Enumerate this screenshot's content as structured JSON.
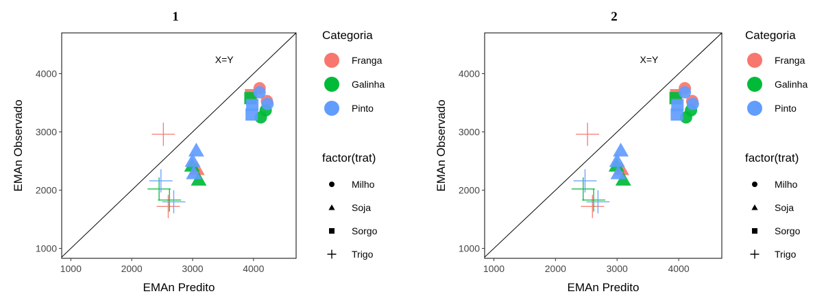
{
  "chart_data": [
    {
      "type": "scatter",
      "title": "1",
      "xlabel": "EMAn Predito",
      "ylabel": "EMAn Observado",
      "xlim": [
        850,
        4700
      ],
      "ylim": [
        830,
        4700
      ],
      "xticks": [
        "1000",
        "2000",
        "3000",
        "4000"
      ],
      "yticks": [
        "1000",
        "2000",
        "3000",
        "4000"
      ],
      "grid": false,
      "reference_line": {
        "label": "X=Y",
        "label_x": 3520,
        "label_y": 4180
      },
      "series": [
        {
          "name": "Franga",
          "points": [
            {
              "x": 4100,
              "y": 3750,
              "trat": "Milho"
            },
            {
              "x": 4220,
              "y": 3530,
              "trat": "Milho"
            },
            {
              "x": 3070,
              "y": 2360,
              "trat": "Soja"
            },
            {
              "x": 3960,
              "y": 3630,
              "trat": "Sorgo"
            },
            {
              "x": 2520,
              "y": 2960,
              "trat": "Trigo"
            },
            {
              "x": 2600,
              "y": 1720,
              "trat": "Trigo"
            }
          ]
        },
        {
          "name": "Galinha",
          "points": [
            {
              "x": 4200,
              "y": 3370,
              "trat": "Milho"
            },
            {
              "x": 4120,
              "y": 3250,
              "trat": "Milho"
            },
            {
              "x": 3100,
              "y": 2180,
              "trat": "Soja"
            },
            {
              "x": 2990,
              "y": 2420,
              "trat": "Soja"
            },
            {
              "x": 3950,
              "y": 3580,
              "trat": "Sorgo"
            },
            {
              "x": 2450,
              "y": 2020,
              "trat": "Trigo"
            },
            {
              "x": 2620,
              "y": 1830,
              "trat": "Trigo"
            }
          ]
        },
        {
          "name": "Pinto",
          "points": [
            {
              "x": 4100,
              "y": 3680,
              "trat": "Milho"
            },
            {
              "x": 4230,
              "y": 3480,
              "trat": "Milho"
            },
            {
              "x": 3060,
              "y": 2680,
              "trat": "Soja"
            },
            {
              "x": 3000,
              "y": 2500,
              "trat": "Soja"
            },
            {
              "x": 3020,
              "y": 2290,
              "trat": "Soja"
            },
            {
              "x": 3980,
              "y": 3460,
              "trat": "Sorgo"
            },
            {
              "x": 3970,
              "y": 3300,
              "trat": "Sorgo"
            },
            {
              "x": 2480,
              "y": 2160,
              "trat": "Trigo"
            },
            {
              "x": 2690,
              "y": 1800,
              "trat": "Trigo"
            }
          ]
        }
      ],
      "legend": {
        "placement": "right",
        "color_title": "Categoria",
        "color_entries": [
          {
            "name": "Franga",
            "color": "#F8766D"
          },
          {
            "name": "Galinha",
            "color": "#00BA38"
          },
          {
            "name": "Pinto",
            "color": "#619CFF"
          }
        ],
        "shape_title": "factor(trat)",
        "shape_entries": [
          {
            "name": "Milho",
            "shape": "circle"
          },
          {
            "name": "Soja",
            "shape": "triangle"
          },
          {
            "name": "Sorgo",
            "shape": "square"
          },
          {
            "name": "Trigo",
            "shape": "plus"
          }
        ]
      }
    },
    {
      "type": "scatter",
      "title": "2",
      "xlabel": "EMAn Predito",
      "ylabel": "EMAn Observado",
      "xlim": [
        850,
        4700
      ],
      "ylim": [
        830,
        4700
      ],
      "xticks": [
        "1000",
        "2000",
        "3000",
        "4000"
      ],
      "yticks": [
        "1000",
        "2000",
        "3000",
        "4000"
      ],
      "grid": false,
      "reference_line": {
        "label": "X=Y",
        "label_x": 3520,
        "label_y": 4180
      },
      "series": [
        {
          "name": "Franga",
          "points": [
            {
              "x": 4100,
              "y": 3750,
              "trat": "Milho"
            },
            {
              "x": 4220,
              "y": 3530,
              "trat": "Milho"
            },
            {
              "x": 3070,
              "y": 2360,
              "trat": "Soja"
            },
            {
              "x": 3960,
              "y": 3630,
              "trat": "Sorgo"
            },
            {
              "x": 2520,
              "y": 2960,
              "trat": "Trigo"
            },
            {
              "x": 2600,
              "y": 1720,
              "trat": "Trigo"
            }
          ]
        },
        {
          "name": "Galinha",
          "points": [
            {
              "x": 4200,
              "y": 3370,
              "trat": "Milho"
            },
            {
              "x": 4120,
              "y": 3250,
              "trat": "Milho"
            },
            {
              "x": 3100,
              "y": 2180,
              "trat": "Soja"
            },
            {
              "x": 2990,
              "y": 2420,
              "trat": "Soja"
            },
            {
              "x": 3950,
              "y": 3580,
              "trat": "Sorgo"
            },
            {
              "x": 2450,
              "y": 2020,
              "trat": "Trigo"
            },
            {
              "x": 2620,
              "y": 1830,
              "trat": "Trigo"
            }
          ]
        },
        {
          "name": "Pinto",
          "points": [
            {
              "x": 4100,
              "y": 3680,
              "trat": "Milho"
            },
            {
              "x": 4230,
              "y": 3480,
              "trat": "Milho"
            },
            {
              "x": 3060,
              "y": 2680,
              "trat": "Soja"
            },
            {
              "x": 3000,
              "y": 2500,
              "trat": "Soja"
            },
            {
              "x": 3020,
              "y": 2290,
              "trat": "Soja"
            },
            {
              "x": 3980,
              "y": 3460,
              "trat": "Sorgo"
            },
            {
              "x": 3970,
              "y": 3300,
              "trat": "Sorgo"
            },
            {
              "x": 2480,
              "y": 2160,
              "trat": "Trigo"
            },
            {
              "x": 2690,
              "y": 1800,
              "trat": "Trigo"
            }
          ]
        }
      ],
      "legend": {
        "placement": "right",
        "color_title": "Categoria",
        "color_entries": [
          {
            "name": "Franga",
            "color": "#F8766D"
          },
          {
            "name": "Galinha",
            "color": "#00BA38"
          },
          {
            "name": "Pinto",
            "color": "#619CFF"
          }
        ],
        "shape_title": "factor(trat)",
        "shape_entries": [
          {
            "name": "Milho",
            "shape": "circle"
          },
          {
            "name": "Soja",
            "shape": "triangle"
          },
          {
            "name": "Sorgo",
            "shape": "square"
          },
          {
            "name": "Trigo",
            "shape": "plus"
          }
        ]
      }
    }
  ]
}
